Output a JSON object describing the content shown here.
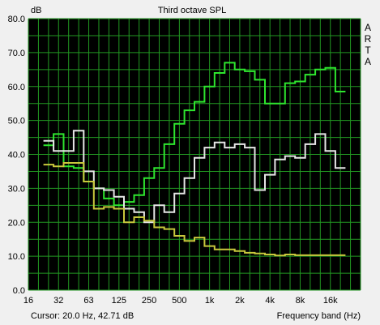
{
  "chart_data": {
    "type": "line",
    "title": "Third octave SPL",
    "ylabel": "dB",
    "xlabel": "Frequency band (Hz)",
    "brand": "ARTA",
    "cursor_text": "Cursor:   20.0 Hz, 42.71 dB",
    "ylim": [
      0,
      80
    ],
    "y_ticks": [
      "0.0",
      "10.0",
      "20.0",
      "30.0",
      "40.0",
      "50.0",
      "60.0",
      "70.0",
      "80.0"
    ],
    "x_ticks": [
      "16",
      "32",
      "63",
      "125",
      "250",
      "500",
      "1k",
      "2k",
      "4k",
      "8k",
      "16k"
    ],
    "x_scale": "log (third-octave bands)",
    "grid": true,
    "bands": [
      "20",
      "25",
      "31.5",
      "40",
      "50",
      "63",
      "80",
      "100",
      "125",
      "160",
      "200",
      "250",
      "315",
      "400",
      "500",
      "630",
      "800",
      "1k",
      "1.25k",
      "1.6k",
      "2k",
      "2.5k",
      "3.15k",
      "4k",
      "5k",
      "6.3k",
      "8k",
      "10k",
      "12.5k",
      "16k"
    ],
    "series": [
      {
        "color": "#2ee62e",
        "values": [
          42.7,
          46,
          36.5,
          36,
          32,
          30,
          27,
          25,
          26,
          28,
          33,
          36,
          43,
          49,
          53,
          55.5,
          60,
          64,
          67,
          65,
          64.5,
          62,
          55,
          55,
          61,
          61.5,
          63.5,
          65,
          65.5,
          58.5
        ]
      },
      {
        "color": "#e6e6e6",
        "values": [
          44,
          41,
          41,
          47,
          35,
          30,
          29.5,
          27.5,
          24,
          23,
          20,
          25,
          23,
          28.5,
          33,
          39,
          42,
          43.5,
          42,
          43,
          42,
          29.5,
          34,
          38.5,
          39.5,
          39,
          43,
          46,
          41,
          36
        ]
      },
      {
        "color": "#c8c83c",
        "values": [
          37,
          36.5,
          37.5,
          37.5,
          32,
          24,
          24.5,
          24,
          20,
          21.5,
          20.5,
          18.5,
          18,
          16,
          14.5,
          15.5,
          13,
          12,
          12,
          11.5,
          11,
          10.8,
          10.5,
          10.2,
          10.5,
          10.3,
          10.3,
          10.3,
          10.3,
          10.3
        ]
      }
    ]
  },
  "colors": {
    "plot_background": "#000000",
    "grid": "#229922",
    "window_background": "#f0f0f0"
  }
}
